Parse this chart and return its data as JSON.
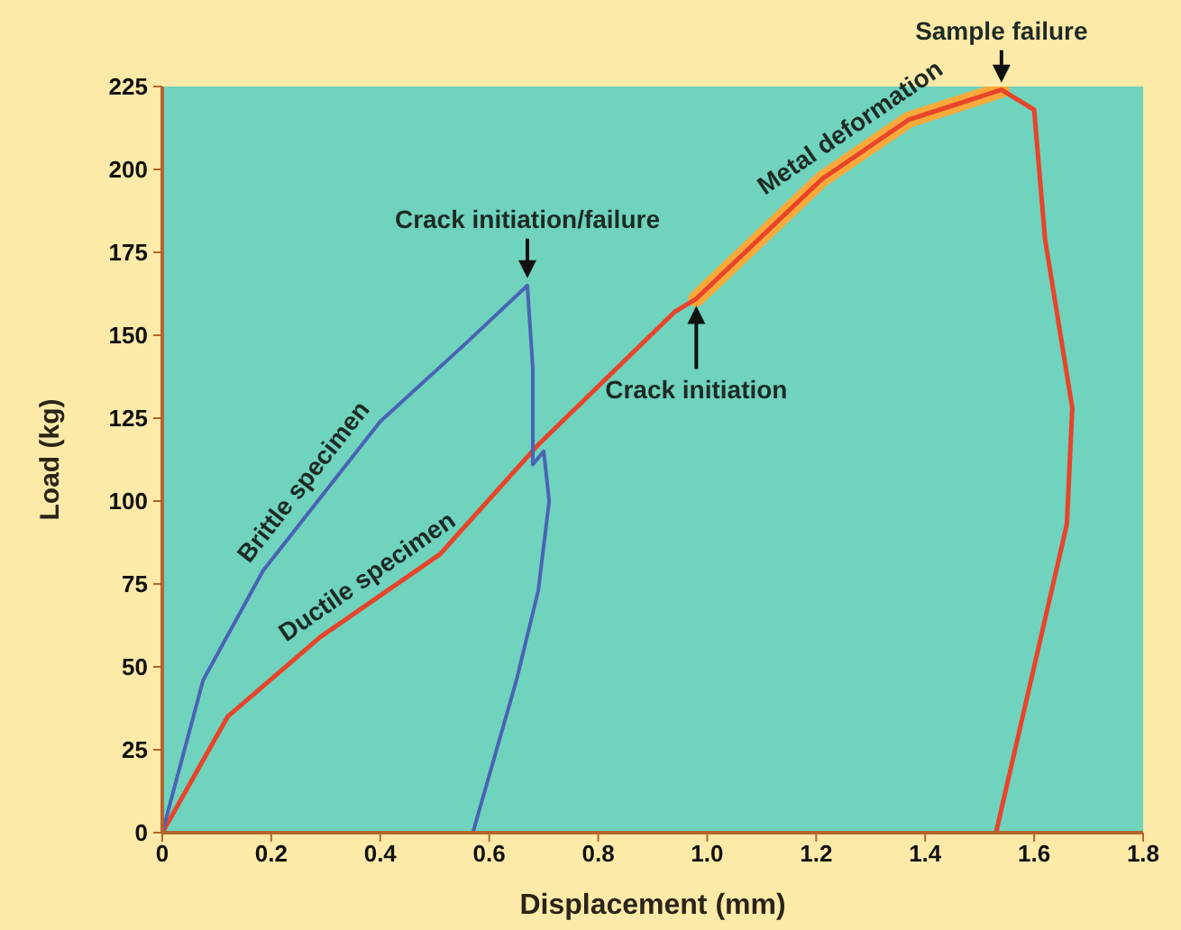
{
  "chart_data": {
    "type": "line",
    "xlabel": "Displacement (mm)",
    "ylabel": "Load (kg)",
    "xlim": [
      0,
      1.8
    ],
    "ylim": [
      0,
      225
    ],
    "xticks": [
      0,
      0.2,
      0.4,
      0.6,
      0.8,
      {
        "value": 1,
        "label": "1.0"
      },
      1.2,
      1.4,
      1.6,
      1.8
    ],
    "yticks": [
      0,
      25,
      50,
      75,
      100,
      125,
      150,
      175,
      200,
      225
    ],
    "grid": false,
    "legend": false,
    "marker": "none",
    "line_style": "solid",
    "series": [
      {
        "name": "Brittle specimen",
        "color": "#4a62b4",
        "x": [
          0,
          0.075,
          0.185,
          0.4,
          0.56,
          0.67,
          0.68,
          0.68,
          0.7,
          0.71,
          0.69,
          0.65,
          0.57
        ],
        "values": [
          0,
          46,
          79,
          124,
          148,
          165,
          140,
          111,
          115,
          100,
          73,
          46,
          0
        ]
      },
      {
        "name": "Ductile specimen",
        "color": "#e8442a",
        "x": [
          0,
          0.12,
          0.29,
          0.51,
          0.69,
          0.94,
          0.98,
          1.21,
          1.37,
          1.54,
          1.6,
          1.62,
          1.67,
          1.66,
          1.53
        ],
        "values": [
          0,
          35,
          59,
          84,
          117,
          157,
          161,
          197,
          215,
          224,
          218,
          179,
          128,
          93,
          0
        ]
      },
      {
        "name": "Metal deformation",
        "color": "#f7a93a",
        "x": [
          0.98,
          1.21,
          1.37,
          1.54
        ],
        "values": [
          161,
          197,
          215,
          224
        ]
      }
    ],
    "annotations": [
      {
        "text": "Crack initiation/failure",
        "x": 0.67,
        "y": 165
      },
      {
        "text": "Crack initiation",
        "x": 0.98,
        "y": 161
      },
      {
        "text": "Sample failure",
        "x": 1.54,
        "y": 224
      }
    ]
  }
}
